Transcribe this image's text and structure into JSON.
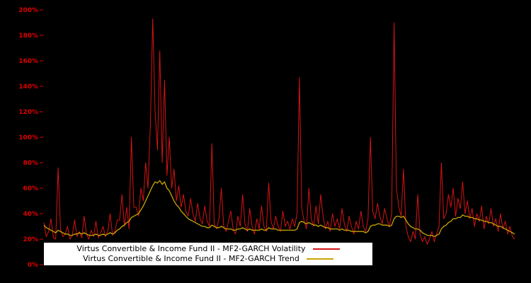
{
  "chart_data": {
    "type": "line",
    "title": "",
    "xlabel": "",
    "ylabel": "",
    "ylim": [
      0,
      200
    ],
    "background_color": "#000000",
    "axis_color": "#dd0000",
    "grid": false,
    "legend_position": "bottom-center",
    "yticks": [
      "0%",
      "20%",
      "40%",
      "60%",
      "80%",
      "100%",
      "120%",
      "140%",
      "160%",
      "180%",
      "200%"
    ],
    "legend": [
      {
        "label": "Virtus Convertible & Income Fund II - MF2-GARCH Volatility",
        "color": "#d41414"
      },
      {
        "label": "Virtus Convertible & Income Fund II - MF2-GARCH Trend",
        "color": "#c8a400"
      }
    ],
    "series": [
      {
        "name": "Virtus Convertible & Income Fund II - MF2-GARCH Volatility",
        "color": "#d41414",
        "width": 1,
        "values": [
          33,
          22,
          26,
          36,
          21,
          20,
          76,
          28,
          22,
          24,
          30,
          20,
          23,
          35,
          22,
          26,
          21,
          38,
          24,
          20,
          27,
          22,
          34,
          21,
          25,
          30,
          22,
          26,
          40,
          23,
          26,
          35,
          35,
          55,
          30,
          45,
          28,
          100,
          45,
          45,
          38,
          60,
          50,
          80,
          60,
          110,
          193,
          120,
          90,
          168,
          80,
          145,
          70,
          100,
          60,
          75,
          50,
          62,
          45,
          55,
          42,
          38,
          52,
          40,
          34,
          48,
          36,
          32,
          46,
          34,
          30,
          95,
          32,
          28,
          36,
          60,
          30,
          26,
          34,
          42,
          28,
          24,
          38,
          30,
          55,
          32,
          26,
          44,
          30,
          24,
          36,
          28,
          46,
          30,
          26,
          64,
          34,
          28,
          38,
          30,
          26,
          42,
          30,
          34,
          28,
          36,
          30,
          40,
          147,
          44,
          34,
          28,
          60,
          36,
          30,
          46,
          32,
          55,
          38,
          28,
          34,
          26,
          40,
          30,
          36,
          28,
          44,
          32,
          26,
          38,
          30,
          24,
          34,
          28,
          42,
          30,
          26,
          36,
          100,
          42,
          36,
          48,
          38,
          32,
          44,
          36,
          30,
          40,
          190,
          60,
          45,
          38,
          75,
          30,
          22,
          18,
          26,
          20,
          55,
          24,
          18,
          22,
          16,
          20,
          26,
          18,
          24,
          30,
          80,
          36,
          40,
          55,
          45,
          60,
          38,
          52,
          44,
          65,
          40,
          50,
          36,
          44,
          30,
          40,
          34,
          46,
          28,
          38,
          32,
          44,
          30,
          36,
          26,
          40,
          28,
          34,
          24,
          30,
          22,
          20
        ]
      },
      {
        "name": "Virtus Convertible & Income Fund II - MF2-GARCH Trend",
        "color": "#c8a400",
        "width": 1.3,
        "values": [
          31,
          29,
          28,
          27,
          26,
          25,
          27,
          26,
          25,
          24,
          24,
          23,
          23,
          24,
          24,
          25,
          24,
          25,
          24,
          23,
          23,
          23,
          24,
          23,
          23,
          24,
          23,
          24,
          25,
          24,
          25,
          27,
          28,
          30,
          31,
          33,
          34,
          37,
          38,
          39,
          40,
          43,
          46,
          50,
          54,
          58,
          62,
          65,
          64,
          66,
          63,
          65,
          60,
          58,
          54,
          50,
          47,
          45,
          42,
          40,
          38,
          36,
          35,
          34,
          33,
          32,
          31,
          30,
          30,
          29,
          29,
          31,
          30,
          29,
          29,
          30,
          29,
          28,
          28,
          28,
          27,
          27,
          28,
          28,
          29,
          28,
          27,
          28,
          27,
          27,
          27,
          27,
          28,
          27,
          27,
          29,
          28,
          28,
          28,
          27,
          27,
          27,
          27,
          27,
          27,
          27,
          27,
          28,
          33,
          34,
          33,
          32,
          33,
          32,
          31,
          31,
          30,
          31,
          30,
          29,
          29,
          28,
          28,
          28,
          28,
          27,
          28,
          27,
          27,
          27,
          26,
          26,
          26,
          26,
          26,
          26,
          25,
          26,
          30,
          31,
          31,
          32,
          32,
          31,
          31,
          31,
          30,
          31,
          36,
          38,
          38,
          37,
          38,
          35,
          32,
          30,
          29,
          28,
          28,
          27,
          25,
          24,
          23,
          23,
          23,
          22,
          23,
          24,
          28,
          30,
          31,
          33,
          34,
          36,
          36,
          37,
          37,
          39,
          38,
          38,
          37,
          37,
          36,
          36,
          35,
          35,
          34,
          34,
          33,
          33,
          32,
          31,
          30,
          30,
          29,
          28,
          27,
          26,
          25,
          24
        ]
      }
    ]
  }
}
